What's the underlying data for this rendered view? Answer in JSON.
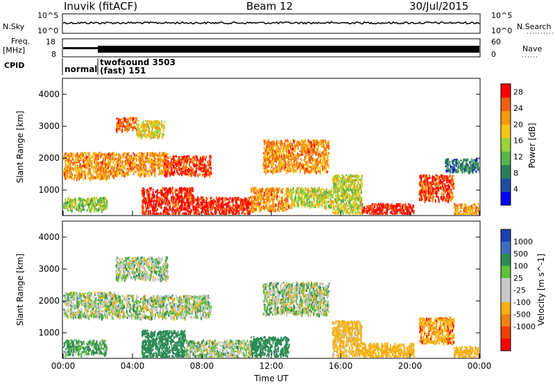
{
  "header": {
    "title": "Inuvik (fitACF)",
    "beam": "Beam 12",
    "date": "30/Jul/2015"
  },
  "strip_panels": {
    "nsky_label": "N.Sky",
    "nsky_ticks": [
      "10^5",
      "10^0"
    ],
    "nsearch_label": "N.Search",
    "nsearch_ticks": [
      "10^5",
      "10^0"
    ],
    "freq_label_1": "Freq.",
    "freq_label_2": "[MHz]",
    "freq_ticks": [
      "18",
      "8"
    ],
    "nave_label": "Nave",
    "nave_ticks": [
      "60",
      "0"
    ],
    "cpid_label": "CPID",
    "cpid_mode_1": "normal",
    "cpid_mode_2_line1": "twofsound 3503",
    "cpid_mode_2_line2": "(fast) 151"
  },
  "colors": {
    "power_scale": [
      "#0000ff",
      "#1e4fa0",
      "#2e7b5e",
      "#57b34a",
      "#9ad43a",
      "#f5c518",
      "#f59a10",
      "#f06010",
      "#ff0000"
    ],
    "velocity_scale": [
      "#1e3fb0",
      "#3f6ec0",
      "#2e8b57",
      "#5fbf3a",
      "#c8c8c8",
      "#c8c8c8",
      "#f5b010",
      "#f08010",
      "#f04000",
      "#ff0000"
    ]
  },
  "chart_data": [
    {
      "type": "heatmap",
      "title": "Power",
      "xlabel": "Time UT",
      "ylabel": "Slant Range [km]",
      "x_ticks": [
        "00:00",
        "04:00",
        "08:00",
        "12:00",
        "16:00",
        "20:00",
        "00:00"
      ],
      "y_ticks": [
        1000,
        2000,
        3000,
        4000
      ],
      "ylim": [
        200,
        4500
      ],
      "xlim_hours": [
        0,
        24
      ],
      "colorbar_label": "Power [dB]",
      "colorbar_ticks": [
        4,
        8,
        12,
        16,
        20,
        24,
        28
      ],
      "colorbar_range": [
        0,
        30
      ],
      "regions": [
        {
          "t0": 0.0,
          "t1": 3.0,
          "r0": 1400,
          "r1": 2200,
          "value": 22
        },
        {
          "t0": 0.0,
          "t1": 2.5,
          "r0": 400,
          "r1": 800,
          "value": 14
        },
        {
          "t0": 3.0,
          "t1": 4.2,
          "r0": 2900,
          "r1": 3300,
          "value": 24
        },
        {
          "t0": 4.2,
          "t1": 5.8,
          "r0": 2700,
          "r1": 3200,
          "value": 18
        },
        {
          "t0": 3.0,
          "t1": 6.0,
          "r0": 1500,
          "r1": 2200,
          "value": 22
        },
        {
          "t0": 5.8,
          "t1": 8.5,
          "r0": 1500,
          "r1": 2100,
          "value": 26
        },
        {
          "t0": 4.5,
          "t1": 7.5,
          "r0": 250,
          "r1": 1100,
          "value": 28
        },
        {
          "t0": 7.5,
          "t1": 10.8,
          "r0": 250,
          "r1": 800,
          "value": 28
        },
        {
          "t0": 10.8,
          "t1": 13.0,
          "r0": 400,
          "r1": 1100,
          "value": 22
        },
        {
          "t0": 11.5,
          "t1": 15.3,
          "r0": 1600,
          "r1": 2600,
          "value": 22
        },
        {
          "t0": 13.0,
          "t1": 15.5,
          "r0": 500,
          "r1": 1100,
          "value": 16
        },
        {
          "t0": 15.5,
          "t1": 17.2,
          "r0": 300,
          "r1": 1500,
          "value": 16
        },
        {
          "t0": 17.2,
          "t1": 20.2,
          "r0": 250,
          "r1": 600,
          "value": 28
        },
        {
          "t0": 20.5,
          "t1": 22.5,
          "r0": 700,
          "r1": 1500,
          "value": 26
        },
        {
          "t0": 22.5,
          "t1": 24.0,
          "r0": 250,
          "r1": 600,
          "value": 22
        },
        {
          "t0": 22.0,
          "t1": 24.0,
          "r0": 1600,
          "r1": 2000,
          "value": 8
        }
      ]
    },
    {
      "type": "heatmap",
      "title": "Velocity",
      "xlabel": "Time UT",
      "ylabel": "Slant Range [km]",
      "x_ticks": [
        "00:00",
        "04:00",
        "08:00",
        "12:00",
        "16:00",
        "20:00",
        "00:00"
      ],
      "y_ticks": [
        1000,
        2000,
        3000,
        4000
      ],
      "ylim": [
        200,
        4500
      ],
      "xlim_hours": [
        0,
        24
      ],
      "colorbar_label": "Velocity [m s^-1]",
      "colorbar_ticks": [
        1000,
        500,
        100,
        25,
        -25,
        -100,
        -500,
        -1000
      ],
      "regions": [
        {
          "t0": 0.0,
          "t1": 3.0,
          "r0": 1500,
          "r1": 2300,
          "value": 0
        },
        {
          "t0": 0.0,
          "t1": 2.5,
          "r0": 350,
          "r1": 800,
          "value": 150
        },
        {
          "t0": 3.0,
          "t1": 6.0,
          "r0": 2700,
          "r1": 3400,
          "value": 0
        },
        {
          "t0": 3.0,
          "t1": 8.5,
          "r0": 1500,
          "r1": 2200,
          "value": 0
        },
        {
          "t0": 4.5,
          "t1": 7.0,
          "r0": 250,
          "r1": 1100,
          "value": 300
        },
        {
          "t0": 7.0,
          "t1": 10.8,
          "r0": 250,
          "r1": 800,
          "value": 0
        },
        {
          "t0": 10.8,
          "t1": 13.0,
          "r0": 300,
          "r1": 900,
          "value": 300
        },
        {
          "t0": 11.5,
          "t1": 15.3,
          "r0": 1600,
          "r1": 2600,
          "value": 0
        },
        {
          "t0": 15.5,
          "t1": 17.2,
          "r0": 300,
          "r1": 1400,
          "value": -200
        },
        {
          "t0": 17.2,
          "t1": 20.2,
          "r0": 250,
          "r1": 700,
          "value": -300
        },
        {
          "t0": 20.5,
          "t1": 22.5,
          "r0": 700,
          "r1": 1500,
          "value": -400
        },
        {
          "t0": 22.5,
          "t1": 24.0,
          "r0": 250,
          "r1": 600,
          "value": -300
        }
      ]
    }
  ]
}
